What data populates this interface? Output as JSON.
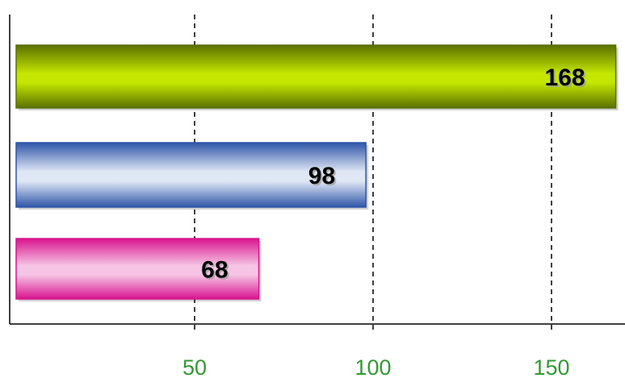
{
  "chart_data": {
    "type": "bar",
    "orientation": "horizontal",
    "title": "",
    "xlabel": "",
    "ylabel": "",
    "xlim": [
      0,
      170
    ],
    "xticks": [
      50,
      100,
      150
    ],
    "tick_label_color": "#339933",
    "grid": {
      "vertical_dashed": true,
      "color": "#000000"
    },
    "categories": [
      "",
      "",
      ""
    ],
    "values": [
      168,
      98,
      68
    ],
    "bar_colors": [
      {
        "light": "#c4e600",
        "dark": "#5a7000"
      },
      {
        "light": "#dfe7f5",
        "dark": "#2f56a8"
      },
      {
        "light": "#f6c4e4",
        "dark": "#d8148e"
      }
    ],
    "data_labels": [
      "168",
      "98",
      "68"
    ]
  }
}
